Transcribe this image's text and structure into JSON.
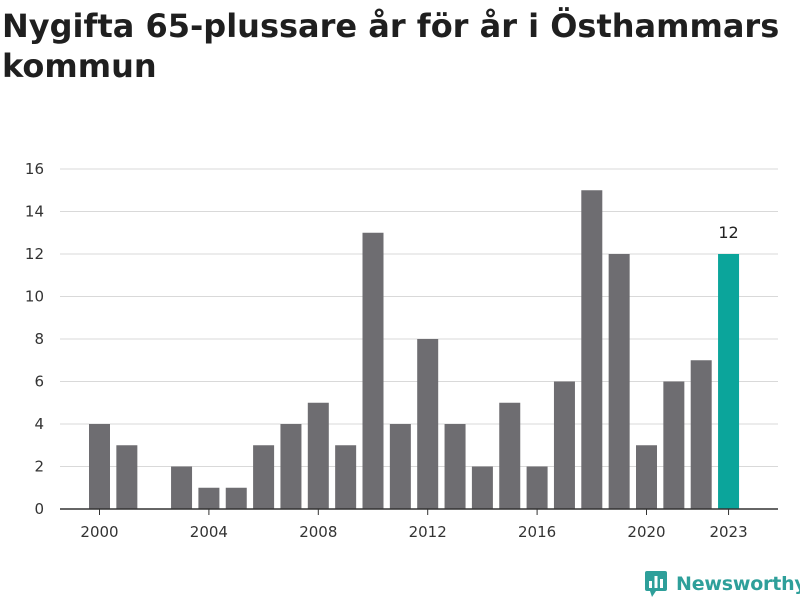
{
  "title": "Nygifta 65-plussare år för år i Östhammars kommun",
  "colors": {
    "bar": "#6e6d71",
    "highlight": "#0ba59b",
    "grid": "#d9d9d9",
    "axis": "#333333",
    "logo": "#2e9f9a"
  },
  "brand": {
    "name": "Newsworthy",
    "icon": "newsworthy-logo-icon"
  },
  "chart_data": {
    "type": "bar",
    "title": "Nygifta 65-plussare år för år i Östhammars kommun",
    "xlabel": "",
    "ylabel": "",
    "categories": [
      "2000",
      "2001",
      "2002",
      "2003",
      "2004",
      "2005",
      "2006",
      "2007",
      "2008",
      "2009",
      "2010",
      "2011",
      "2012",
      "2013",
      "2014",
      "2015",
      "2016",
      "2017",
      "2018",
      "2019",
      "2020",
      "2021",
      "2022",
      "2023"
    ],
    "values": [
      4,
      3,
      0,
      2,
      1,
      1,
      3,
      4,
      5,
      3,
      13,
      4,
      8,
      4,
      2,
      5,
      2,
      6,
      15,
      12,
      3,
      6,
      7,
      12
    ],
    "ylim": [
      0,
      16
    ],
    "yticks": [
      0,
      2,
      4,
      6,
      8,
      10,
      12,
      14,
      16
    ],
    "xtick_labels": [
      "2000",
      "2004",
      "2008",
      "2012",
      "2016",
      "2020",
      "2023"
    ],
    "highlight_category": "2023",
    "annotations": [
      {
        "category": "2023",
        "text": "12"
      }
    ],
    "grid": "horizontal",
    "legend": "none"
  }
}
